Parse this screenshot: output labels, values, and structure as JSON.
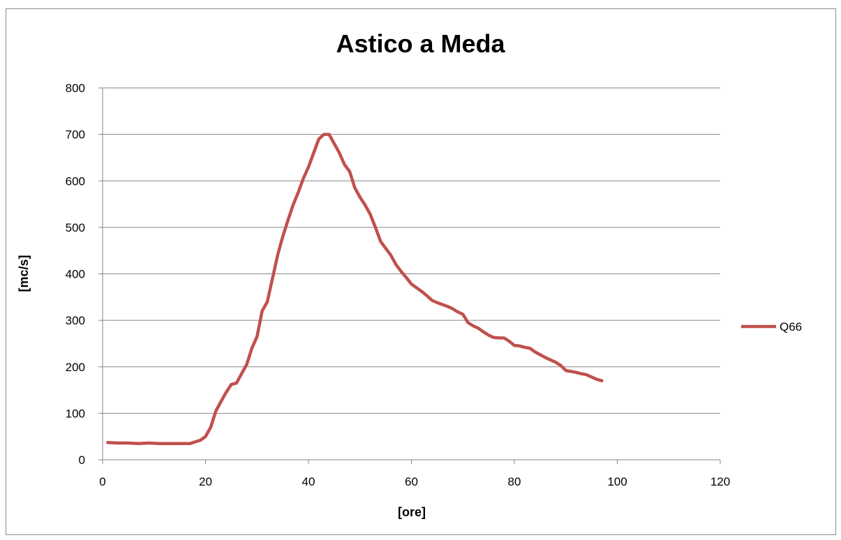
{
  "chart_data": {
    "type": "line",
    "title": "Astico a Meda",
    "xlabel": "[ore]",
    "ylabel": "[mc/s]",
    "xlim": [
      0,
      120
    ],
    "ylim": [
      0,
      800
    ],
    "xticks": [
      0,
      20,
      40,
      60,
      80,
      100,
      120
    ],
    "yticks": [
      0,
      100,
      200,
      300,
      400,
      500,
      600,
      700,
      800
    ],
    "grid": true,
    "legend": "right",
    "series": [
      {
        "name": "Q66",
        "color": "#c0504d",
        "x": [
          1,
          3,
          5,
          7,
          9,
          11,
          13,
          15,
          17,
          19,
          20,
          21,
          22,
          23,
          24,
          25,
          26,
          27,
          28,
          29,
          30,
          31,
          32,
          33,
          34,
          35,
          36,
          37,
          38,
          39,
          40,
          41,
          42,
          43,
          44,
          45,
          46,
          47,
          48,
          49,
          50,
          51,
          52,
          53,
          54,
          55,
          56,
          57,
          58,
          59,
          60,
          61,
          62,
          63,
          64,
          65,
          66,
          67,
          68,
          69,
          70,
          71,
          72,
          73,
          74,
          75,
          76,
          77,
          78,
          79,
          80,
          81,
          82,
          83,
          84,
          85,
          86,
          87,
          88,
          89,
          90,
          91,
          92,
          93,
          94,
          95,
          96,
          97
        ],
        "y": [
          37,
          36,
          36,
          35,
          36,
          35,
          35,
          35,
          35,
          42,
          50,
          70,
          105,
          125,
          145,
          162,
          165,
          185,
          205,
          240,
          265,
          320,
          340,
          390,
          440,
          480,
          515,
          548,
          575,
          605,
          630,
          660,
          690,
          700,
          700,
          680,
          660,
          635,
          620,
          585,
          565,
          548,
          528,
          500,
          470,
          455,
          440,
          420,
          405,
          392,
          378,
          370,
          362,
          353,
          343,
          338,
          334,
          330,
          325,
          318,
          313,
          295,
          288,
          283,
          275,
          268,
          263,
          262,
          262,
          255,
          246,
          245,
          242,
          240,
          232,
          226,
          220,
          215,
          210,
          203,
          192,
          190,
          188,
          185,
          183,
          178,
          173,
          170
        ]
      }
    ]
  }
}
